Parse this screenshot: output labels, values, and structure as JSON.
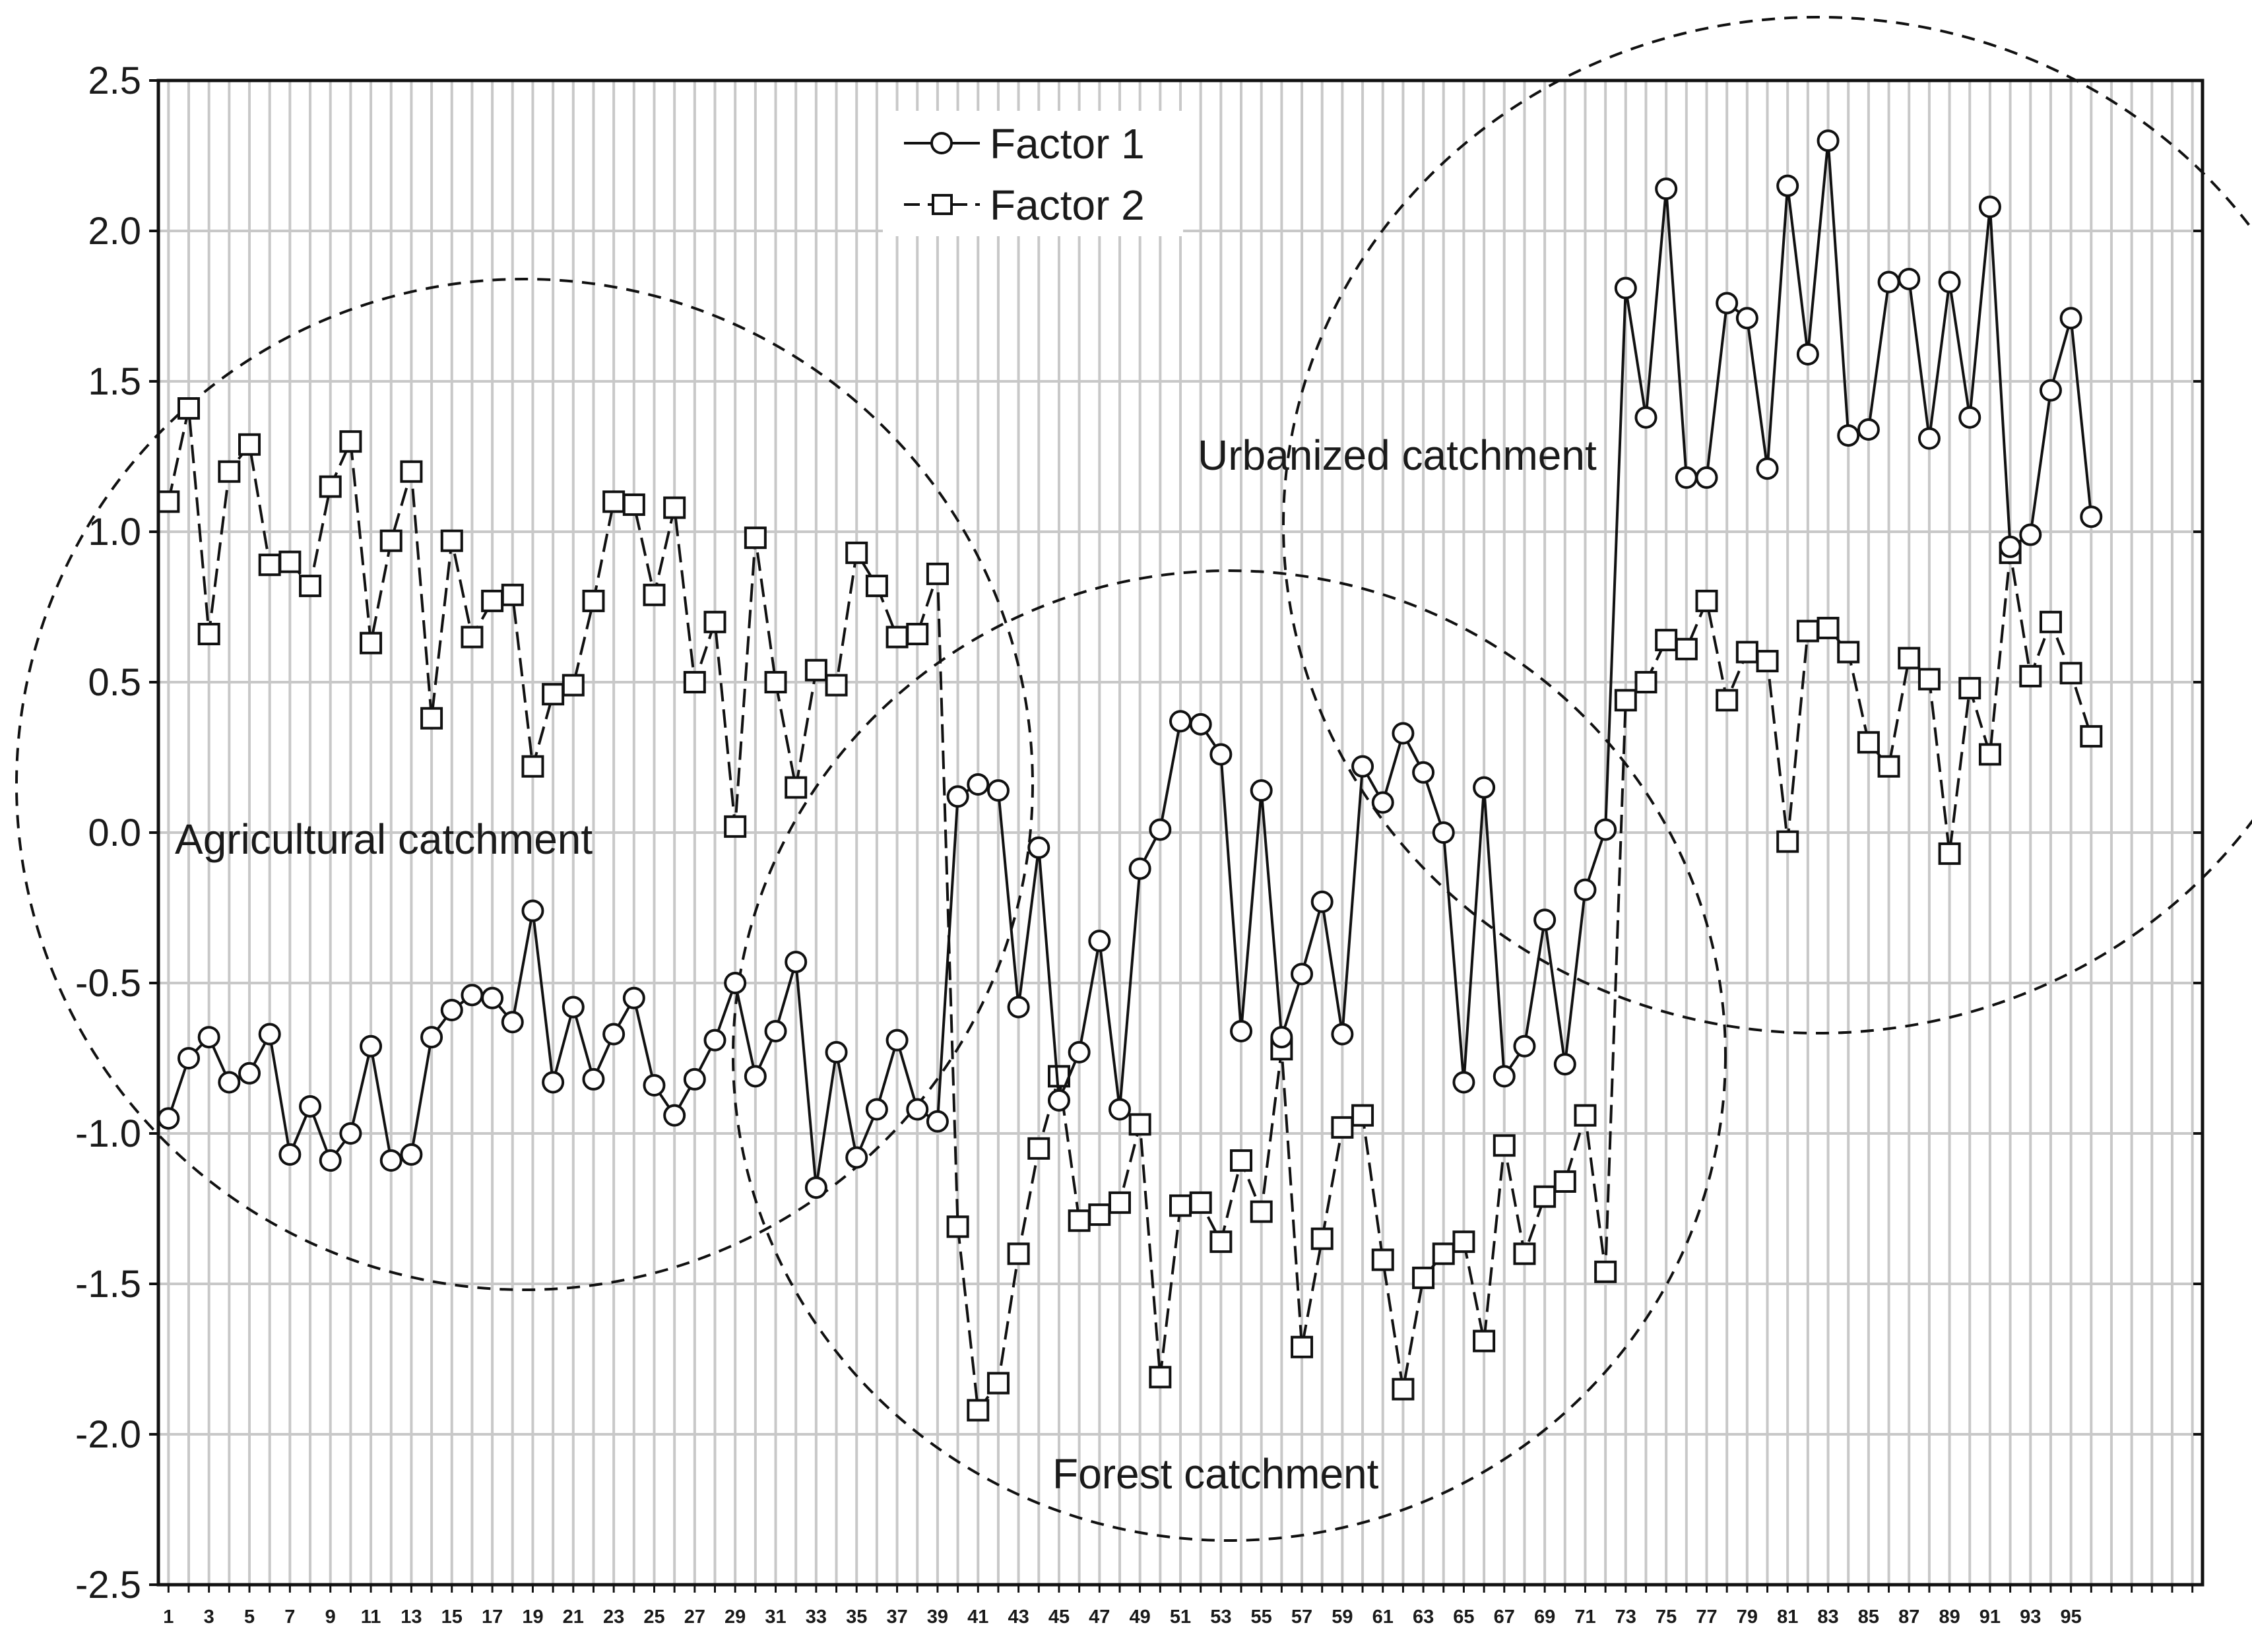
{
  "chart_data": {
    "type": "line",
    "title": "",
    "xlabel": "",
    "ylabel": "",
    "xlim": [
      0.5,
      101.5
    ],
    "ylim": [
      -2.5,
      2.5
    ],
    "x": [
      1,
      2,
      3,
      4,
      5,
      6,
      7,
      8,
      9,
      10,
      11,
      12,
      13,
      14,
      15,
      16,
      17,
      18,
      19,
      20,
      21,
      22,
      23,
      24,
      25,
      26,
      27,
      28,
      29,
      30,
      31,
      32,
      33,
      34,
      35,
      36,
      37,
      38,
      39,
      40,
      41,
      42,
      43,
      44,
      45,
      46,
      47,
      48,
      49,
      50,
      51,
      52,
      53,
      54,
      55,
      56,
      57,
      58,
      59,
      60,
      61,
      62,
      63,
      64,
      65,
      66,
      67,
      68,
      69,
      70,
      71,
      72,
      73,
      74,
      75,
      76,
      77,
      78,
      79,
      80,
      81,
      82,
      83,
      84,
      85,
      86,
      87,
      88,
      89,
      90,
      91,
      92,
      93,
      94,
      95,
      96
    ],
    "x_tick_labels": [
      "1",
      "3",
      "5",
      "7",
      "9",
      "11",
      "13",
      "15",
      "17",
      "19",
      "21",
      "23",
      "25",
      "27",
      "29",
      "31",
      "33",
      "35",
      "37",
      "39",
      "41",
      "43",
      "45",
      "47",
      "49",
      "51",
      "53",
      "55",
      "57",
      "59",
      "61",
      "63",
      "65",
      "67",
      "69",
      "71",
      "73",
      "75",
      "77",
      "79",
      "81",
      "83",
      "85",
      "87",
      "89",
      "91",
      "93",
      "95"
    ],
    "y_tick_labels": [
      "2.5",
      "2.0",
      "1.5",
      "1.0",
      "0.5",
      "0.0",
      "-0.5",
      "-1.0",
      "-1.5",
      "-2.0",
      "-2.5"
    ],
    "y_ticks": [
      2.5,
      2.0,
      1.5,
      1.0,
      0.5,
      0.0,
      -0.5,
      -1.0,
      -1.5,
      -2.0,
      -2.5
    ],
    "grid": true,
    "legend_position": "top-center",
    "series": [
      {
        "name": "Factor 1",
        "marker": "circle",
        "line": "solid",
        "values": [
          -0.95,
          -0.75,
          -0.68,
          -0.83,
          -0.8,
          -0.67,
          -1.07,
          -0.91,
          -1.09,
          -1.0,
          -0.71,
          -1.09,
          -1.07,
          -0.68,
          -0.59,
          -0.54,
          -0.55,
          -0.63,
          -0.26,
          -0.83,
          -0.58,
          -0.82,
          -0.67,
          -0.55,
          -0.84,
          -0.94,
          -0.82,
          -0.69,
          -0.5,
          -0.81,
          -0.66,
          -0.43,
          -1.18,
          -0.73,
          -1.08,
          -0.92,
          -0.69,
          -0.92,
          -0.96,
          0.12,
          0.16,
          0.14,
          -0.58,
          -0.05,
          -0.89,
          -0.73,
          -0.36,
          -0.92,
          -0.12,
          0.01,
          0.37,
          0.36,
          0.26,
          -0.66,
          0.14,
          -0.68,
          -0.47,
          -0.23,
          -0.67,
          0.22,
          0.1,
          0.33,
          0.2,
          0.0,
          -0.83,
          0.15,
          -0.81,
          -0.71,
          -0.29,
          -0.77,
          -0.19,
          0.01,
          1.81,
          1.38,
          2.14,
          1.18,
          1.18,
          1.76,
          1.71,
          1.21,
          2.15,
          1.59,
          2.3,
          1.32,
          1.34,
          1.83,
          1.84,
          1.31,
          1.83,
          1.38,
          2.08,
          0.95,
          0.99,
          1.47,
          1.71,
          1.05
        ]
      },
      {
        "name": "Factor 2",
        "marker": "square",
        "line": "dashed",
        "values": [
          1.1,
          1.41,
          0.66,
          1.2,
          1.29,
          0.89,
          0.9,
          0.82,
          1.15,
          1.3,
          0.63,
          0.97,
          1.2,
          0.38,
          0.97,
          0.65,
          0.77,
          0.79,
          0.22,
          0.46,
          0.49,
          0.77,
          1.1,
          1.09,
          0.79,
          1.08,
          0.5,
          0.7,
          0.02,
          0.98,
          0.5,
          0.15,
          0.54,
          0.49,
          0.93,
          0.82,
          0.65,
          0.66,
          0.86,
          -1.31,
          -1.92,
          -1.83,
          -1.4,
          -1.05,
          -0.81,
          -1.29,
          -1.27,
          -1.23,
          -0.97,
          -1.81,
          -1.24,
          -1.23,
          -1.36,
          -1.09,
          -1.26,
          -0.72,
          -1.71,
          -1.35,
          -0.98,
          -0.94,
          -1.42,
          -1.85,
          -1.48,
          -1.4,
          -1.36,
          -1.69,
          -1.04,
          -1.4,
          -1.21,
          -1.16,
          -0.94,
          -1.46,
          0.44,
          0.5,
          0.64,
          0.61,
          0.77,
          0.44,
          0.6,
          0.57,
          -0.03,
          0.67,
          0.68,
          0.6,
          0.3,
          0.22,
          0.58,
          0.51,
          -0.07,
          0.48,
          0.26,
          0.93,
          0.52,
          0.7,
          0.53,
          0.32
        ]
      }
    ],
    "annotations": [
      {
        "text": "Agricultural catchment",
        "region_shape": "dashed-ellipse"
      },
      {
        "text": "Forest catchment",
        "region_shape": "dashed-ellipse"
      },
      {
        "text": "Urbanized catchment",
        "region_shape": "dashed-ellipse"
      }
    ]
  }
}
